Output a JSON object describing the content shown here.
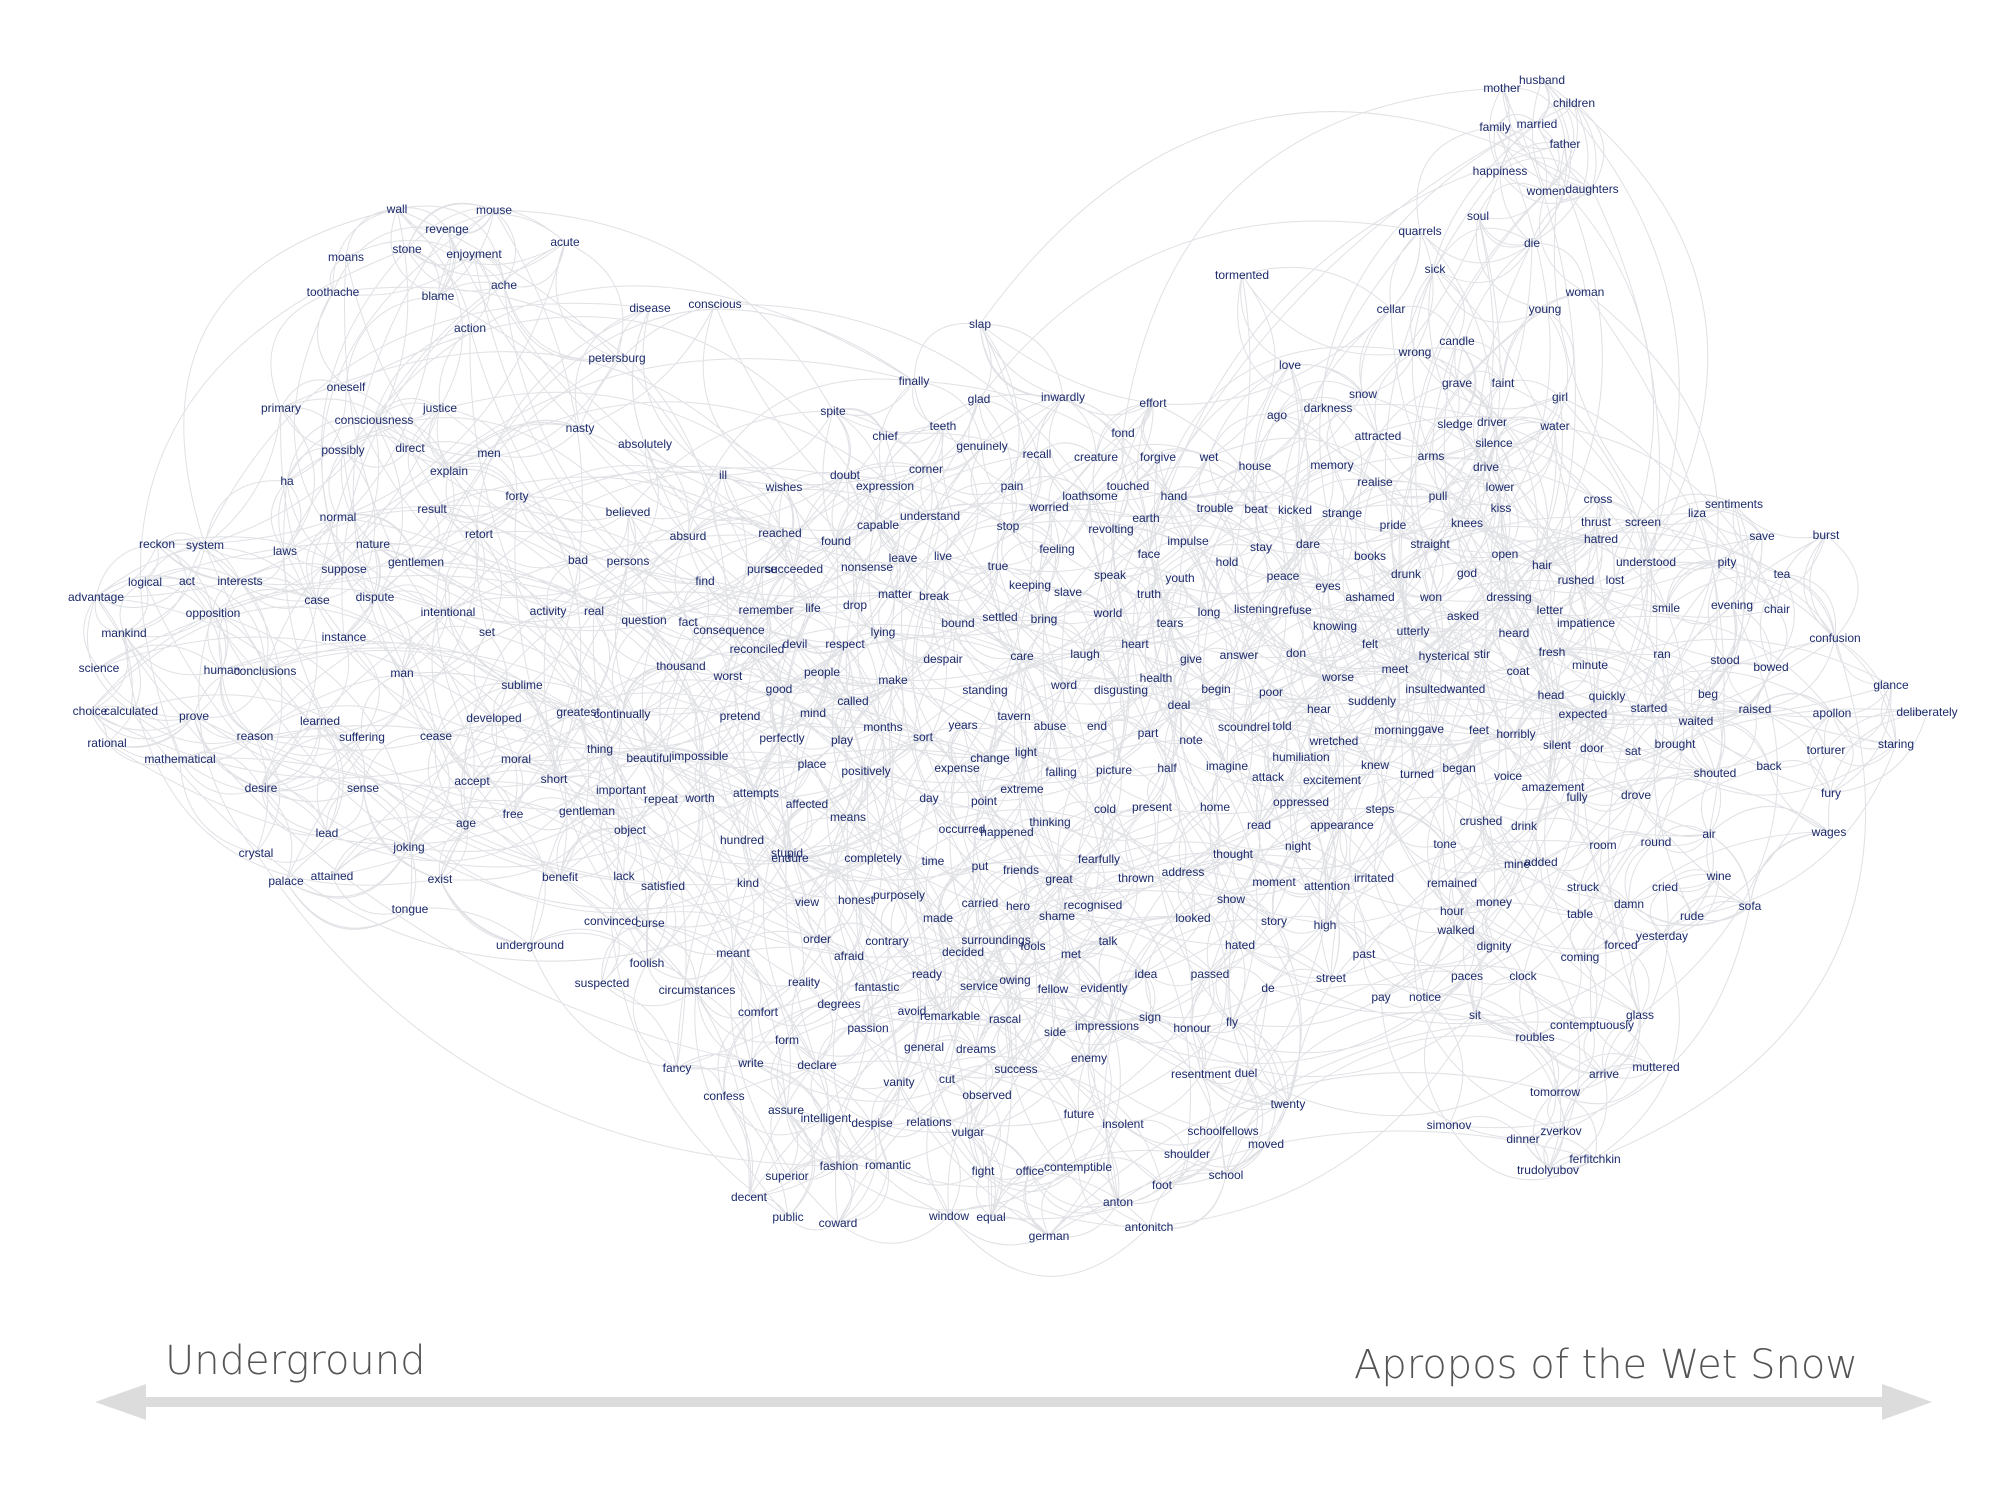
{
  "axis": {
    "left_label": "Underground",
    "right_label": "Apropos of the Wet Snow",
    "line_color": "#dcdcdc"
  },
  "colors": {
    "word": "#1c2a6b",
    "edge": "#9ea3ad"
  },
  "words": [
    "mother",
    "husband",
    "children",
    "family",
    "married",
    "father",
    "happiness",
    "women",
    "daughters",
    "soul",
    "quarrels",
    "die",
    "sick",
    "tormented",
    "woman",
    "cellar",
    "young",
    "candle",
    "wrong",
    "slap",
    "love",
    "grave",
    "faint",
    "snow",
    "darkness",
    "ago",
    "sledge",
    "driver",
    "girl",
    "water",
    "wall",
    "mouse",
    "revenge",
    "acute",
    "stone",
    "enjoyment",
    "moans",
    "ache",
    "toothache",
    "blame",
    "disease",
    "conscious",
    "action",
    "petersburg",
    "oneself",
    "primary",
    "justice",
    "consciousness",
    "nasty",
    "possibly",
    "direct",
    "men",
    "absolutely",
    "explain",
    "ill",
    "forty",
    "ha",
    "normal",
    "result",
    "retort",
    "believed",
    "reckon",
    "system",
    "laws",
    "nature",
    "gentlemen",
    "logical",
    "act",
    "interests",
    "suppose",
    "advantage",
    "dispute",
    "case",
    "opposition",
    "intentional",
    "activity",
    "real",
    "question",
    "mankind",
    "instance",
    "set",
    "science",
    "human",
    "conclusions",
    "man",
    "sublime",
    "choice",
    "calculated",
    "prove",
    "learned",
    "developed",
    "greatest",
    "rational",
    "reason",
    "suffering",
    "cease",
    "mathematical",
    "desire",
    "sense",
    "accept",
    "moral",
    "short",
    "lead",
    "crystal",
    "joking",
    "age",
    "free",
    "gentleman",
    "palace",
    "attained",
    "exist",
    "benefit",
    "tongue",
    "underground",
    "finally",
    "glad",
    "inwardly",
    "effort",
    "spite",
    "chief",
    "teeth",
    "genuinely",
    "fond",
    "recall",
    "creature",
    "forgive",
    "wet",
    "house",
    "memory",
    "attracted",
    "arms",
    "silence",
    "drive",
    "doubt",
    "wishes",
    "expression",
    "corner",
    "pain",
    "loathsome",
    "touched",
    "hand",
    "realise",
    "pull",
    "lower",
    "kiss",
    "cross",
    "sentiments",
    "liza",
    "save",
    "burst",
    "screen",
    "thrust",
    "hatred",
    "understood",
    "pity",
    "tea",
    "reached",
    "found",
    "capable",
    "understand",
    "stop",
    "worried",
    "revolting",
    "earth",
    "trouble",
    "beat",
    "kicked",
    "strange",
    "pride",
    "knees",
    "straight",
    "open",
    "books",
    "absurd",
    "bad",
    "persons",
    "succeeded",
    "nonsense",
    "leave",
    "live",
    "true",
    "feeling",
    "impulse",
    "hold",
    "stay",
    "dare",
    "peace",
    "eyes",
    "drunk",
    "god",
    "hair",
    "rushed",
    "lost",
    "find",
    "purse",
    "remember",
    "matter",
    "break",
    "keeping",
    "slave",
    "speak",
    "face",
    "youth",
    "truth",
    "ashamed",
    "won",
    "dressing",
    "letter",
    "smile",
    "evening",
    "chair",
    "confusion",
    "life",
    "drop",
    "fact",
    "consequence",
    "bound",
    "settled",
    "bring",
    "world",
    "long",
    "listening",
    "refuse",
    "knowing",
    "utterly",
    "asked",
    "heard",
    "impatience",
    "devil",
    "respect",
    "lying",
    "tears",
    "thousand",
    "reconciled",
    "worst",
    "despair",
    "care",
    "laugh",
    "heart",
    "give",
    "answer",
    "don",
    "felt",
    "hysterical",
    "stir",
    "fresh",
    "minute",
    "ran",
    "stood",
    "bowed",
    "glance",
    "deliberately",
    "people",
    "good",
    "called",
    "make",
    "standing",
    "word",
    "disgusting",
    "health",
    "begin",
    "poor",
    "worse",
    "meet",
    "insulted",
    "wanted",
    "coat",
    "head",
    "quickly",
    "beg",
    "raised",
    "apollon",
    "continually",
    "pretend",
    "mind",
    "months",
    "years",
    "tavern",
    "abuse",
    "end",
    "deal",
    "scoundrel",
    "told",
    "hear",
    "suddenly",
    "morning",
    "gave",
    "feet",
    "horribly",
    "expected",
    "started",
    "waited",
    "beautiful",
    "impossible",
    "perfectly",
    "play",
    "sort",
    "change",
    "light",
    "part",
    "note",
    "wretched",
    "silent",
    "door",
    "sat",
    "brought",
    "staring",
    "torturer",
    "thing",
    "place",
    "positively",
    "expense",
    "falling",
    "picture",
    "half",
    "imagine",
    "humiliation",
    "knew",
    "turned",
    "began",
    "voice",
    "shouted",
    "back",
    "important",
    "repeat",
    "worth",
    "attempts",
    "extreme",
    "attack",
    "excitement",
    "amazement",
    "fully",
    "drove",
    "fury",
    "wages",
    "affected",
    "day",
    "point",
    "cold",
    "present",
    "home",
    "oppressed",
    "steps",
    "crushed",
    "object",
    "means",
    "thinking",
    "read",
    "appearance",
    "drink",
    "air",
    "hundred",
    "endure",
    "completely",
    "occurred",
    "happened",
    "night",
    "tone",
    "room",
    "round",
    "stupid",
    "time",
    "put",
    "fearfully",
    "thought",
    "mine",
    "added",
    "lack",
    "satisfied",
    "kind",
    "friends",
    "great",
    "thrown",
    "address",
    "irritated",
    "remained",
    "wine",
    "convinced",
    "curse",
    "purposely",
    "view",
    "honest",
    "carried",
    "hero",
    "recognised",
    "show",
    "moment",
    "attention",
    "struck",
    "cried",
    "money",
    "damn",
    "rude",
    "sofa",
    "made",
    "shame",
    "looked",
    "story",
    "high",
    "hour",
    "table",
    "yesterday",
    "order",
    "contrary",
    "surroundings",
    "fools",
    "talk",
    "walked",
    "dignity",
    "foolish",
    "meant",
    "afraid",
    "decided",
    "met",
    "hated",
    "ready",
    "idea",
    "passed",
    "past",
    "forced",
    "coming",
    "suspected",
    "reality",
    "service",
    "owing",
    "fellow",
    "evidently",
    "street",
    "paces",
    "clock",
    "circumstances",
    "fantastic",
    "degrees",
    "de",
    "pay",
    "notice",
    "comfort",
    "avoid",
    "remarkable",
    "rascal",
    "sign",
    "sit",
    "passion",
    "side",
    "impressions",
    "honour",
    "fly",
    "glass",
    "contemptuously",
    "form",
    "roubles",
    "general",
    "dreams",
    "enemy",
    "fancy",
    "write",
    "declare",
    "success",
    "resentment",
    "duel",
    "arrive",
    "muttered",
    "vanity",
    "cut",
    "observed",
    "confess",
    "tomorrow",
    "twenty",
    "assure",
    "intelligent",
    "despise",
    "relations",
    "vulgar",
    "future",
    "insolent",
    "schoolfellows",
    "simonov",
    "zverkov",
    "dinner",
    "moved",
    "ferfitchkin",
    "trudolyubov",
    "shoulder",
    "superior",
    "fashion",
    "romantic",
    "fight",
    "office",
    "contemptible",
    "school",
    "foot",
    "decent",
    "anton",
    "public",
    "coward",
    "window",
    "equal",
    "antonitch",
    "german"
  ]
}
